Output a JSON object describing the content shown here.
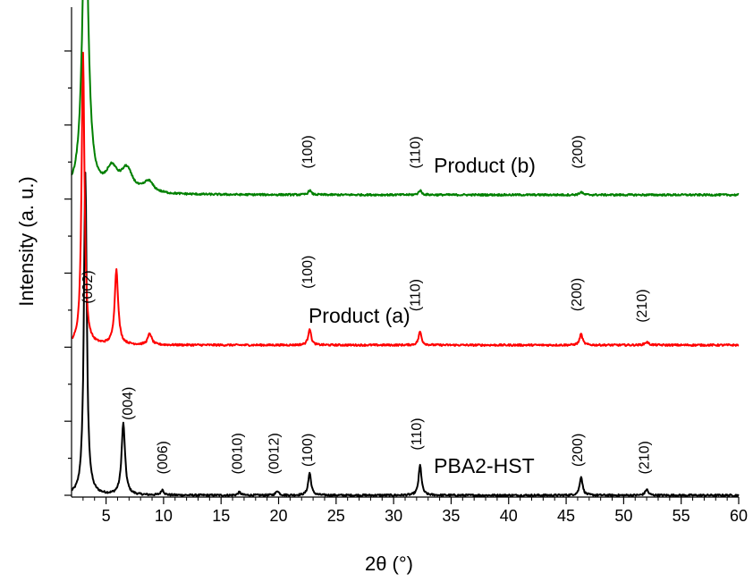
{
  "chart_data": {
    "type": "line",
    "title": "",
    "xlabel": "2θ (°)",
    "ylabel": "Intensity (a. u.)",
    "xlim": [
      2,
      60
    ],
    "xticks": [
      5,
      10,
      15,
      20,
      25,
      30,
      35,
      40,
      45,
      50,
      55,
      60
    ],
    "y_ticks_labeled": false,
    "ylim": [
      0,
      6.5
    ],
    "grid": false,
    "series": [
      {
        "name": "PBA2-HST",
        "color": "#000000",
        "baseline": 0,
        "label_at": [
          33.5,
          0.3
        ],
        "peaks": [
          [
            3.2,
            4.3,
            0.15
          ],
          [
            6.5,
            0.95,
            0.18
          ],
          [
            9.9,
            0.07,
            0.15
          ],
          [
            16.6,
            0.04,
            0.15
          ],
          [
            19.9,
            0.06,
            0.15
          ],
          [
            22.7,
            0.3,
            0.15
          ],
          [
            32.3,
            0.4,
            0.15
          ],
          [
            46.3,
            0.25,
            0.15
          ],
          [
            52.0,
            0.08,
            0.15
          ]
        ],
        "annotations": [
          {
            "text": "(002)",
            "x": 3.8,
            "y": 2.55
          },
          {
            "text": "(004)",
            "x": 7.3,
            "y": 1.0
          },
          {
            "text": "(006)",
            "x": 10.3,
            "y": 0.28
          },
          {
            "text": "(0010)",
            "x": 16.8,
            "y": 0.28
          },
          {
            "text": "(0012)",
            "x": 20.0,
            "y": 0.28
          },
          {
            "text": "(100)",
            "x": 22.9,
            "y": 0.38
          },
          {
            "text": "(110)",
            "x": 32.4,
            "y": 0.6
          },
          {
            "text": "(200)",
            "x": 46.4,
            "y": 0.38
          },
          {
            "text": "(210)",
            "x": 52.2,
            "y": 0.28
          }
        ]
      },
      {
        "name": "Product (a)",
        "color": "#ff0000",
        "baseline": 2.0,
        "label_at": [
          22.6,
          2.3
        ],
        "peaks": [
          [
            3.0,
            3.9,
            0.15
          ],
          [
            5.9,
            1.0,
            0.18
          ],
          [
            8.8,
            0.15,
            0.2
          ],
          [
            22.7,
            0.22,
            0.15
          ],
          [
            32.3,
            0.18,
            0.15
          ],
          [
            46.3,
            0.15,
            0.15
          ],
          [
            52.0,
            0.04,
            0.2
          ]
        ],
        "annotations": [
          {
            "text": "(100)",
            "x": 22.9,
            "y": 2.75
          },
          {
            "text": "(110)",
            "x": 32.3,
            "y": 2.45
          },
          {
            "text": "(200)",
            "x": 46.3,
            "y": 2.45
          },
          {
            "text": "(210)",
            "x": 52.0,
            "y": 2.3
          }
        ]
      },
      {
        "name": "Product (b)",
        "color": "#008000",
        "baseline": 4.0,
        "label_at": [
          33.5,
          4.3
        ],
        "peaks": [
          [
            3.2,
            4.1,
            0.3
          ],
          [
            5.5,
            0.3,
            0.6
          ],
          [
            6.8,
            0.3,
            0.6
          ],
          [
            8.7,
            0.15,
            0.5
          ],
          [
            22.7,
            0.06,
            0.15
          ],
          [
            32.3,
            0.06,
            0.15
          ],
          [
            46.3,
            0.04,
            0.15
          ]
        ],
        "annotations": [
          {
            "text": "(100)",
            "x": 22.9,
            "y": 4.35
          },
          {
            "text": "(110)",
            "x": 32.3,
            "y": 4.35
          },
          {
            "text": "(200)",
            "x": 46.4,
            "y": 4.35
          }
        ]
      }
    ]
  }
}
